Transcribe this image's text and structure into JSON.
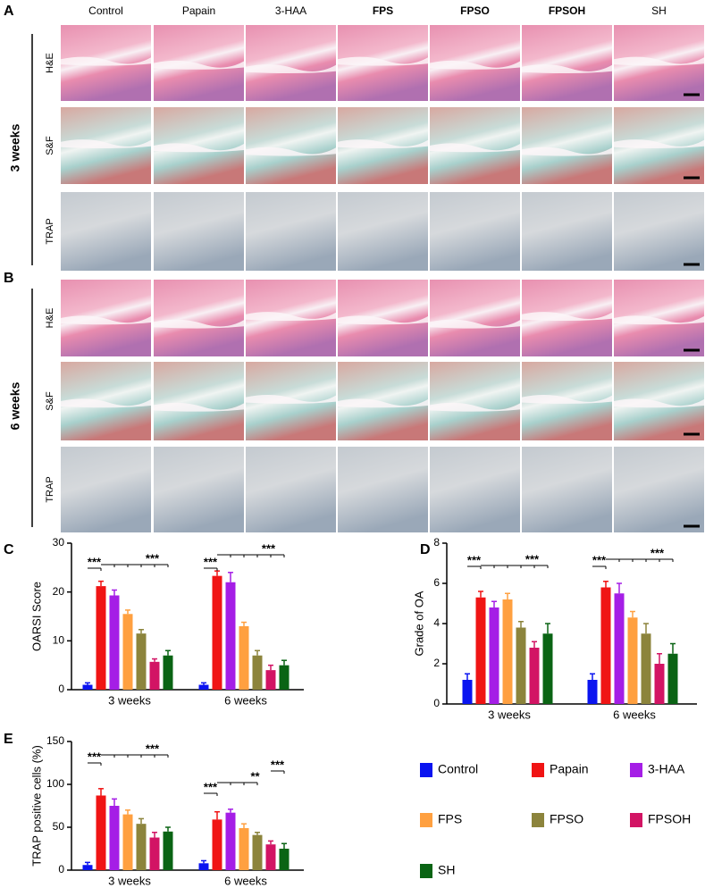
{
  "panels": [
    "A",
    "B",
    "C",
    "D",
    "E"
  ],
  "histology": {
    "columns": [
      "Control",
      "Papain",
      "3-HAA",
      "FPS",
      "FPSO",
      "FPSOH",
      "SH"
    ],
    "stains": [
      "H&E",
      "S&F",
      "TRAP"
    ],
    "timepoints": [
      "3 weeks",
      "6 weeks"
    ]
  },
  "chart_data": [
    {
      "type": "bar",
      "y_label": "OARSI Score",
      "categories": [
        "3 weeks",
        "6 weeks"
      ],
      "ylim": [
        0,
        30
      ],
      "yticks": [
        0,
        10,
        20,
        30
      ],
      "series": [
        {
          "name": "Control",
          "color": "#0a14f0",
          "values": [
            1,
            1
          ],
          "errors": [
            0.4,
            0.4
          ]
        },
        {
          "name": "Papain",
          "color": "#f01414",
          "values": [
            21.2,
            23.3
          ],
          "errors": [
            1,
            1
          ]
        },
        {
          "name": "3-HAA",
          "color": "#a51ee6",
          "values": [
            19.3,
            22
          ],
          "errors": [
            1.1,
            2
          ]
        },
        {
          "name": "FPS",
          "color": "#ffa040",
          "values": [
            15.5,
            13
          ],
          "errors": [
            0.8,
            0.8
          ]
        },
        {
          "name": "FPSO",
          "color": "#8c843c",
          "values": [
            11.5,
            7
          ],
          "errors": [
            0.8,
            1
          ]
        },
        {
          "name": "FPSOH",
          "color": "#d21464",
          "values": [
            5.7,
            4
          ],
          "errors": [
            0.6,
            1
          ]
        },
        {
          "name": "SH",
          "color": "#0a6414",
          "values": [
            7,
            5
          ],
          "errors": [
            1,
            1
          ]
        }
      ],
      "annotations": [
        {
          "text": "***"
        },
        {
          "text": "***"
        },
        {
          "text": "***"
        },
        {
          "text": "***"
        }
      ]
    },
    {
      "type": "bar",
      "y_label": "Grade of OA",
      "categories": [
        "3 weeks",
        "6 weeks"
      ],
      "ylim": [
        0,
        8
      ],
      "yticks": [
        0,
        2,
        4,
        6,
        8
      ],
      "series": [
        {
          "name": "Control",
          "color": "#0a14f0",
          "values": [
            1.2,
            1.2
          ],
          "errors": [
            0.3,
            0.3
          ]
        },
        {
          "name": "Papain",
          "color": "#f01414",
          "values": [
            5.3,
            5.8
          ],
          "errors": [
            0.3,
            0.3
          ]
        },
        {
          "name": "3-HAA",
          "color": "#a51ee6",
          "values": [
            4.8,
            5.5
          ],
          "errors": [
            0.3,
            0.5
          ]
        },
        {
          "name": "FPS",
          "color": "#ffa040",
          "values": [
            5.2,
            4.3
          ],
          "errors": [
            0.3,
            0.3
          ]
        },
        {
          "name": "FPSO",
          "color": "#8c843c",
          "values": [
            3.8,
            3.5
          ],
          "errors": [
            0.3,
            0.5
          ]
        },
        {
          "name": "FPSOH",
          "color": "#d21464",
          "values": [
            2.8,
            2
          ],
          "errors": [
            0.3,
            0.5
          ]
        },
        {
          "name": "SH",
          "color": "#0a6414",
          "values": [
            3.5,
            2.5
          ],
          "errors": [
            0.5,
            0.5
          ]
        }
      ],
      "annotations": [
        {
          "text": "***"
        },
        {
          "text": "***"
        },
        {
          "text": "***"
        },
        {
          "text": "***"
        }
      ]
    },
    {
      "type": "bar",
      "y_label": "TRAP positive cells (%)",
      "categories": [
        "3 weeks",
        "6 weeks"
      ],
      "ylim": [
        0,
        150
      ],
      "yticks": [
        0,
        50,
        100,
        150
      ],
      "series": [
        {
          "name": "Control",
          "color": "#0a14f0",
          "values": [
            6,
            8
          ],
          "errors": [
            3,
            3
          ]
        },
        {
          "name": "Papain",
          "color": "#f01414",
          "values": [
            87,
            59
          ],
          "errors": [
            8,
            9
          ]
        },
        {
          "name": "3-HAA",
          "color": "#a51ee6",
          "values": [
            75,
            67
          ],
          "errors": [
            8,
            4
          ]
        },
        {
          "name": "FPS",
          "color": "#ffa040",
          "values": [
            65,
            49
          ],
          "errors": [
            5,
            5
          ]
        },
        {
          "name": "FPSO",
          "color": "#8c843c",
          "values": [
            54,
            41
          ],
          "errors": [
            6,
            3
          ]
        },
        {
          "name": "FPSOH",
          "color": "#d21464",
          "values": [
            38,
            30
          ],
          "errors": [
            6,
            4
          ]
        },
        {
          "name": "SH",
          "color": "#0a6414",
          "values": [
            45,
            25
          ],
          "errors": [
            5,
            6
          ]
        }
      ],
      "annotations": [
        {
          "text": "***"
        },
        {
          "text": "***"
        },
        {
          "text": "***"
        },
        {
          "text": "**"
        },
        {
          "text": "***"
        }
      ],
      "legend": "right"
    }
  ]
}
